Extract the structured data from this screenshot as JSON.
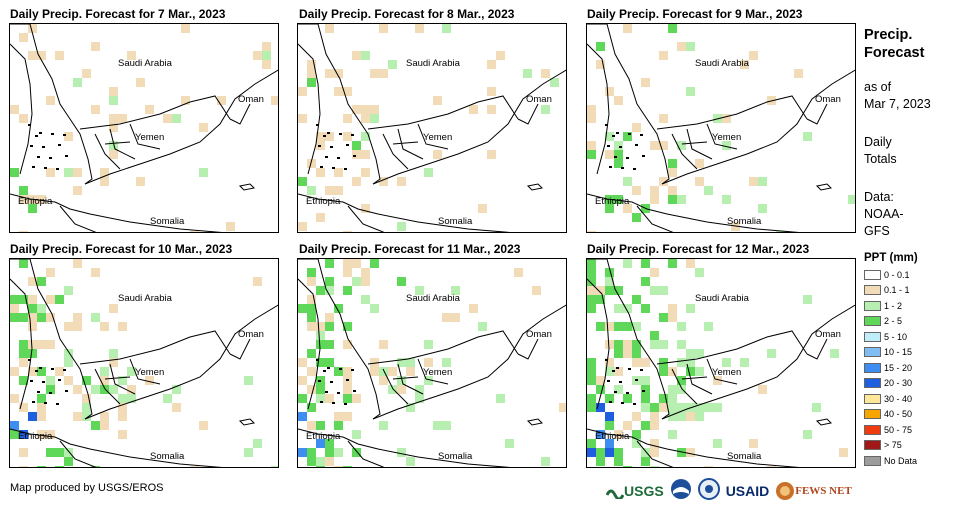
{
  "panels": [
    {
      "title": "Daily Precip. Forecast for 7 Mar., 2023"
    },
    {
      "title": "Daily Precip. Forecast for 8 Mar., 2023"
    },
    {
      "title": "Daily Precip. Forecast for 9 Mar., 2023"
    },
    {
      "title": "Daily Precip. Forecast for 10 Mar., 2023"
    },
    {
      "title": "Daily Precip. Forecast for 11 Mar., 2023"
    },
    {
      "title": "Daily Precip. Forecast for 12 Mar., 2023"
    }
  ],
  "countries": {
    "saudi": "Saudi Arabia",
    "oman": "Oman",
    "yemen": "Yemen",
    "ethiopia": "Ethiopia",
    "somalia": "Somalia"
  },
  "sidebar": {
    "title_line1": "Precip.",
    "title_line2": "Forecast",
    "asof_line1": "as of",
    "asof_line2": "Mar 7, 2023",
    "totals_line1": "Daily",
    "totals_line2": "Totals",
    "data_line1": "Data:",
    "data_line2": "NOAA-",
    "data_line3": "GFS"
  },
  "legend": {
    "title": "PPT (mm)",
    "items": [
      {
        "label": "0 - 0.1",
        "color": "#ffffff"
      },
      {
        "label": "0.1 - 1",
        "color": "#f2dcb8"
      },
      {
        "label": "1 - 2",
        "color": "#b6efb0"
      },
      {
        "label": "2 - 5",
        "color": "#5fd85a"
      },
      {
        "label": "5 - 10",
        "color": "#bfeef8"
      },
      {
        "label": "10 - 15",
        "color": "#7fbdf2"
      },
      {
        "label": "15 - 20",
        "color": "#3d8ef0"
      },
      {
        "label": "20 - 30",
        "color": "#1e5fe0"
      },
      {
        "label": "30 - 40",
        "color": "#fde89a"
      },
      {
        "label": "40 - 50",
        "color": "#f7a500"
      },
      {
        "label": "50 - 75",
        "color": "#f03a10"
      },
      {
        "label": "> 75",
        "color": "#a01818"
      },
      {
        "label": "No Data",
        "color": "#9c9c9c"
      }
    ]
  },
  "credit": "Map produced by USGS/EROS",
  "logos": {
    "usgs": "USGS",
    "usaid": "USAID",
    "fewsnet": "FEWS NET"
  },
  "precip_intensity": [
    0.15,
    0.25,
    0.45,
    0.6,
    0.75,
    0.85
  ]
}
